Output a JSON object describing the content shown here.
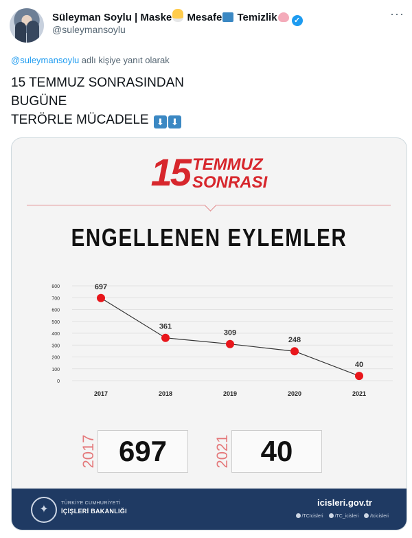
{
  "tweet": {
    "display_name_parts": [
      "Süleyman Soylu | Maske",
      "Mesafe",
      "Temizlik"
    ],
    "emoji_icons": [
      "mask-emoji",
      "left-right-arrow-emoji",
      "soap-emoji"
    ],
    "handle": "@suleymansoylu",
    "reply_to_handle": "@suleymansoylu",
    "reply_suffix": " adlı kişiye yanıt olarak",
    "text_lines": [
      "15 TEMMUZ SONRASINDAN",
      "BUGÜNE",
      "TERÖRLE MÜCADELE"
    ],
    "more_glyph": "···",
    "verified_glyph": "✓",
    "arrow_glyph": "⬇"
  },
  "card": {
    "brand_number": "15",
    "brand_word1": "TEMMUZ",
    "brand_word2": "SONRASI",
    "subtitle": "ENGELLENEN EYLEMLER",
    "stat_boxes": [
      {
        "year": "2017",
        "value": "697"
      },
      {
        "year": "2021",
        "value": "40"
      }
    ],
    "footer": {
      "org_line1": "TÜRKİYE CUMHURİYETİ",
      "org_line2": "İÇİŞLERİ BAKANLIĞI",
      "website": "icisleri.gov.tr",
      "social": [
        "/TCIcisleri",
        "/TC_icisleri",
        "/tcicisleri"
      ]
    }
  },
  "chart_data": {
    "type": "line",
    "x": [
      "2017",
      "2018",
      "2019",
      "2020",
      "2021"
    ],
    "series": [
      {
        "values": [
          697,
          361,
          309,
          248,
          40
        ]
      }
    ],
    "data_labels": [
      "697",
      "361",
      "309",
      "248",
      "40"
    ],
    "yticks": [
      0,
      100,
      200,
      300,
      400,
      500,
      600,
      700,
      800
    ],
    "ylim": [
      0,
      800
    ],
    "grid": true,
    "line_color": "#333333",
    "marker_color": "#e8161b"
  }
}
